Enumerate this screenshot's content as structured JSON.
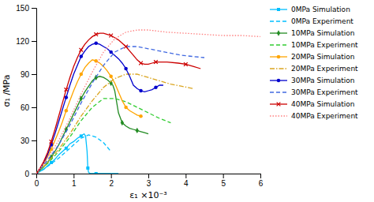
{
  "chart_data": {
    "type": "line",
    "xlabel": "ε₁ ×10⁻³",
    "ylabel": "σ₁ /MPa",
    "xlim": [
      0,
      6
    ],
    "ylim": [
      0,
      150
    ],
    "xticks": [
      0,
      1,
      2,
      3,
      4,
      5,
      6
    ],
    "yticks": [
      0,
      30,
      60,
      90,
      120,
      150
    ],
    "grid": false,
    "legend": "right",
    "series": [
      {
        "name": "0MPa Simulation",
        "color": "#00BFFF",
        "marker": "square",
        "line_style": "solid",
        "x": [
          0,
          0.1,
          0.2,
          0.3,
          0.4,
          0.5,
          0.6,
          0.7,
          0.8,
          0.9,
          1.0,
          1.1,
          1.2,
          1.28,
          1.32,
          1.36,
          1.38,
          1.4,
          1.45,
          1.5,
          1.6,
          1.8,
          2.0,
          2.2
        ],
        "values": [
          0,
          2,
          4,
          7,
          10,
          13,
          17,
          20,
          23,
          27,
          29,
          32,
          34,
          36,
          34,
          20,
          5,
          1,
          0,
          0,
          0,
          0,
          0,
          0
        ]
      },
      {
        "name": "0MPa Experiment",
        "color": "#00BFFF",
        "line_style": "dashed",
        "x": [
          0,
          0.2,
          0.4,
          0.6,
          0.8,
          1.0,
          1.2,
          1.4,
          1.6,
          1.8,
          2.0
        ],
        "values": [
          0,
          4,
          9,
          14,
          20,
          26,
          32,
          35,
          33,
          28,
          20
        ]
      },
      {
        "name": "10MPa Simulation",
        "color": "#228B22",
        "marker": "diamond",
        "line_style": "solid",
        "x": [
          0,
          0.1,
          0.2,
          0.3,
          0.4,
          0.5,
          0.6,
          0.7,
          0.8,
          0.9,
          1.0,
          1.1,
          1.2,
          1.3,
          1.4,
          1.5,
          1.6,
          1.7,
          1.8,
          1.9,
          2.0,
          2.05,
          2.1,
          2.2,
          2.3,
          2.4,
          2.5,
          2.6,
          2.7,
          2.8,
          2.9,
          3.0
        ],
        "values": [
          0,
          3,
          6,
          10,
          15,
          20,
          26,
          33,
          40,
          47,
          54,
          61,
          68,
          74,
          79,
          84,
          87,
          88,
          87,
          85,
          82,
          80,
          75,
          55,
          46,
          43,
          41,
          40,
          39,
          38,
          37,
          36
        ]
      },
      {
        "name": "10MPa Experiment",
        "color": "#32CD32",
        "line_style": "dashed",
        "x": [
          0,
          0.3,
          0.6,
          0.9,
          1.2,
          1.5,
          1.8,
          2.1,
          2.4,
          2.7,
          3.0,
          3.3,
          3.6
        ],
        "values": [
          0,
          9,
          20,
          33,
          48,
          60,
          68,
          68,
          65,
          60,
          55,
          50,
          46
        ]
      },
      {
        "name": "20MPa Simulation",
        "color": "#FFA500",
        "marker": "circle",
        "line_style": "solid",
        "x": [
          0,
          0.1,
          0.2,
          0.3,
          0.4,
          0.5,
          0.6,
          0.7,
          0.8,
          0.9,
          1.0,
          1.1,
          1.2,
          1.3,
          1.4,
          1.5,
          1.6,
          1.7,
          1.8,
          1.9,
          2.0,
          2.1,
          2.2,
          2.3,
          2.4,
          2.5,
          2.6,
          2.7,
          2.8
        ],
        "values": [
          0,
          4,
          9,
          15,
          22,
          30,
          38,
          47,
          57,
          66,
          75,
          83,
          90,
          96,
          100,
          103,
          102,
          100,
          97,
          93,
          88,
          82,
          74,
          66,
          60,
          57,
          55,
          53,
          52
        ]
      },
      {
        "name": "20MPa Experiment",
        "color": "#DAA520",
        "line_style": "dashdot",
        "x": [
          0,
          0.3,
          0.6,
          0.9,
          1.2,
          1.5,
          1.8,
          2.1,
          2.4,
          2.7,
          3.0,
          3.3,
          3.6,
          3.9,
          4.2
        ],
        "values": [
          0,
          10,
          22,
          36,
          52,
          66,
          78,
          86,
          90,
          90,
          87,
          84,
          81,
          79,
          77
        ]
      },
      {
        "name": "30MPa Simulation",
        "color": "#0000CD",
        "marker": "circle",
        "line_style": "solid",
        "x": [
          0,
          0.1,
          0.2,
          0.3,
          0.4,
          0.5,
          0.6,
          0.7,
          0.8,
          0.9,
          1.0,
          1.1,
          1.2,
          1.3,
          1.4,
          1.5,
          1.6,
          1.7,
          1.8,
          1.9,
          2.0,
          2.1,
          2.2,
          2.3,
          2.4,
          2.5,
          2.6,
          2.7,
          2.8,
          2.9,
          3.0,
          3.1,
          3.2,
          3.3,
          3.4
        ],
        "values": [
          0,
          4,
          10,
          17,
          26,
          36,
          47,
          58,
          69,
          80,
          90,
          98,
          106,
          111,
          115,
          117,
          118,
          117,
          115,
          113,
          110,
          107,
          104,
          100,
          95,
          88,
          80,
          77,
          75,
          74,
          75,
          76,
          78,
          80,
          80
        ]
      },
      {
        "name": "30MPa Experiment",
        "color": "#4169E1",
        "line_style": "dashed",
        "x": [
          0,
          0.3,
          0.6,
          0.9,
          1.2,
          1.5,
          1.8,
          2.1,
          2.4,
          2.7,
          3.0,
          3.3,
          3.6,
          3.9,
          4.2,
          4.5
        ],
        "values": [
          0,
          12,
          26,
          44,
          64,
          82,
          98,
          110,
          115,
          115,
          113,
          111,
          109,
          107,
          106,
          105
        ]
      },
      {
        "name": "40MPa Simulation",
        "color": "#CC0000",
        "marker": "x",
        "line_style": "solid",
        "x": [
          0,
          0.1,
          0.2,
          0.3,
          0.4,
          0.5,
          0.6,
          0.7,
          0.8,
          0.9,
          1.0,
          1.1,
          1.2,
          1.3,
          1.4,
          1.5,
          1.6,
          1.7,
          1.8,
          1.9,
          2.0,
          2.1,
          2.2,
          2.3,
          2.4,
          2.5,
          2.6,
          2.7,
          2.8,
          2.9,
          3.0,
          3.1,
          3.2,
          3.3,
          3.5,
          3.8,
          4.0,
          4.2,
          4.4
        ],
        "values": [
          0,
          5,
          11,
          19,
          29,
          40,
          52,
          64,
          76,
          87,
          97,
          105,
          112,
          117,
          121,
          124,
          126,
          127,
          127,
          126,
          125,
          123,
          121,
          118,
          115,
          111,
          107,
          103,
          100,
          99,
          99,
          100,
          101,
          101,
          101,
          100,
          99,
          97,
          95
        ]
      },
      {
        "name": "40MPa Experiment",
        "color": "#FF8080",
        "line_style": "dotted",
        "x": [
          0,
          0.3,
          0.6,
          0.9,
          1.2,
          1.5,
          1.8,
          2.1,
          2.4,
          2.7,
          3.0,
          3.5,
          4.0,
          4.5,
          5.0,
          5.5,
          6.0
        ],
        "values": [
          0,
          14,
          30,
          50,
          72,
          92,
          110,
          122,
          128,
          130,
          130,
          128,
          127,
          126,
          125,
          125,
          124
        ]
      }
    ]
  }
}
